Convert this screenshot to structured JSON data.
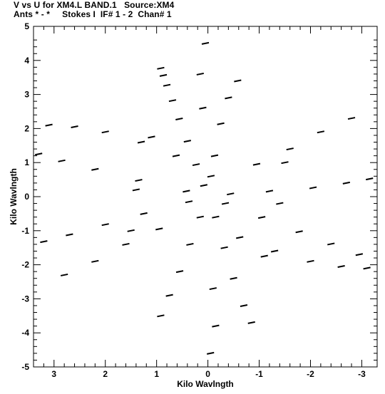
{
  "header": {
    "line1": "V vs U for XM4.L BAND.1   Source:XM4",
    "line2": "Ants * - *     Stokes I  IF# 1 - 2  Chan# 1"
  },
  "chart_data": {
    "type": "scatter",
    "title": "V vs U for XM4.L BAND.1   Source:XM4",
    "subtitle": "Ants * - *     Stokes I  IF# 1 - 2  Chan# 1",
    "xlabel": "Kilo Wavlngth",
    "ylabel": "Kilo Wavlngth",
    "xlim": [
      3.4,
      -3.3
    ],
    "ylim": [
      -5,
      5
    ],
    "x_ticks": [
      3,
      2,
      1,
      0,
      -1,
      -2,
      -3
    ],
    "x_tick_labels": [
      "3",
      "2",
      "1",
      "0",
      "-1",
      "-2",
      "-3"
    ],
    "y_ticks": [
      5,
      4,
      3,
      2,
      1,
      0,
      -1,
      -2,
      -3,
      -4,
      -5
    ],
    "y_tick_labels": [
      "5",
      "4",
      "3",
      "2",
      "1",
      "0",
      "-1",
      "-2",
      "-3",
      "-4",
      "-5"
    ],
    "grid": false,
    "marker": "short horizontal dash (frequency-spread uv track segment)",
    "color": "#000000",
    "pattern": "six-armed star (Y-shaped array snapshot tracks and their conjugates)",
    "series": [
      {
        "points": [
          [
            0.08,
            0.33
          ],
          [
            0.23,
            0.94
          ],
          [
            0.4,
            1.63
          ],
          [
            0.56,
            2.28
          ],
          [
            0.69,
            2.82
          ],
          [
            0.8,
            3.27
          ],
          [
            0.87,
            3.56
          ],
          [
            0.92,
            3.77
          ],
          [
            0.37,
            -0.15
          ],
          [
            1.25,
            -0.5
          ],
          [
            2.0,
            -0.82
          ],
          [
            2.7,
            -1.12
          ],
          [
            3.2,
            -1.32
          ],
          [
            -0.34,
            -0.2
          ],
          [
            -1.05,
            -0.61
          ],
          [
            -1.78,
            -1.03
          ],
          [
            -2.4,
            -1.39
          ],
          [
            -2.95,
            -1.7
          ],
          [
            -0.06,
            0.6
          ],
          [
            -0.13,
            1.2
          ],
          [
            -0.25,
            2.14
          ],
          [
            -0.4,
            2.9
          ],
          [
            -0.58,
            3.4
          ],
          [
            -0.44,
            0.08
          ],
          [
            -1.2,
            0.16
          ],
          [
            -2.05,
            0.26
          ],
          [
            -2.7,
            0.4
          ],
          [
            -3.15,
            0.52
          ],
          [
            0.42,
            0.16
          ],
          [
            1.35,
            0.48
          ],
          [
            2.2,
            0.8
          ],
          [
            2.85,
            1.05
          ],
          [
            3.3,
            1.25
          ],
          [
            0.15,
            -0.6
          ],
          [
            0.35,
            -1.4
          ],
          [
            0.55,
            -2.2
          ],
          [
            0.75,
            -2.9
          ],
          [
            0.92,
            -3.5
          ],
          [
            -0.15,
            -0.6
          ],
          [
            -0.32,
            -1.5
          ],
          [
            -0.5,
            -2.4
          ],
          [
            -0.7,
            -3.2
          ],
          [
            -0.85,
            -3.7
          ],
          [
            0.62,
            1.2
          ],
          [
            1.3,
            1.6
          ],
          [
            2.0,
            1.9
          ],
          [
            2.6,
            2.05
          ],
          [
            3.1,
            2.1
          ],
          [
            -0.62,
            -1.2
          ],
          [
            -1.3,
            -1.6
          ],
          [
            -2.0,
            -1.9
          ],
          [
            -2.6,
            -2.05
          ],
          [
            -3.1,
            -2.1
          ],
          [
            0.95,
            -0.95
          ],
          [
            1.6,
            -1.4
          ],
          [
            2.2,
            -1.9
          ],
          [
            2.8,
            -2.3
          ],
          [
            -0.95,
            0.95
          ],
          [
            -1.6,
            1.4
          ],
          [
            -2.2,
            1.9
          ],
          [
            -2.8,
            2.3
          ],
          [
            0.1,
            2.6
          ],
          [
            0.15,
            3.6
          ],
          [
            0.05,
            4.5
          ],
          [
            -0.1,
            -2.7
          ],
          [
            -0.15,
            -3.8
          ],
          [
            -0.05,
            -4.6
          ],
          [
            1.1,
            1.75
          ],
          [
            -1.1,
            -1.75
          ],
          [
            1.4,
            0.2
          ],
          [
            -1.4,
            -0.2
          ],
          [
            1.5,
            -1.0
          ],
          [
            -1.5,
            1.0
          ]
        ]
      }
    ]
  }
}
